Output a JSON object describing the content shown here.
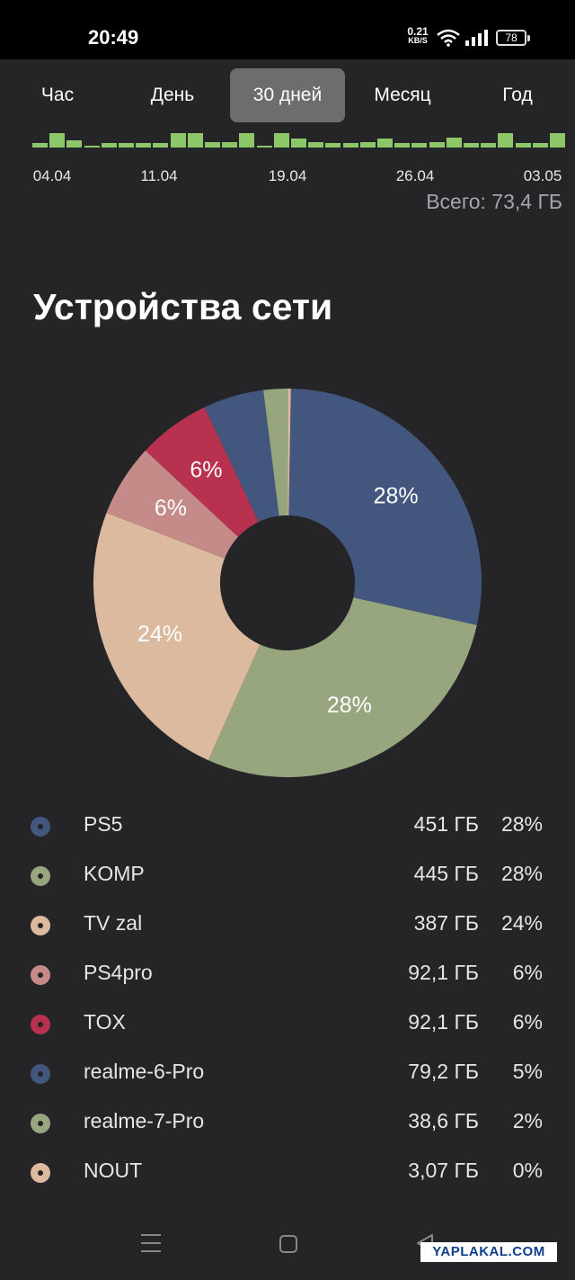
{
  "status_bar": {
    "time": "20:49",
    "net_speed_value": "0.21",
    "net_speed_unit": "KB/S",
    "battery": "78"
  },
  "tabs": [
    {
      "label": "Час",
      "active": false
    },
    {
      "label": "День",
      "active": false
    },
    {
      "label": "30 дней",
      "active": true
    },
    {
      "label": "Месяц",
      "active": false
    },
    {
      "label": "Год",
      "active": false
    }
  ],
  "usage_chart": {
    "bar_color": "#8cc76a",
    "daily_levels": [
      0.3,
      1.0,
      0.5,
      0.15,
      0.3,
      0.3,
      0.3,
      0.3,
      1.0,
      1.0,
      0.4,
      0.4,
      1.0,
      0.15,
      1.0,
      0.6,
      0.4,
      0.3,
      0.3,
      0.4,
      0.6,
      0.3,
      0.3,
      0.4,
      0.7,
      0.3,
      0.3,
      1.0,
      0.3,
      0.3,
      1.0
    ],
    "date_labels": [
      "04.04",
      "11.04",
      "19.04",
      "26.04",
      "03.05"
    ],
    "total": "Всего: 73,4 ГБ"
  },
  "section_title": "Устройства сети",
  "chart_data": {
    "type": "pie",
    "donut": true,
    "slices": [
      {
        "name": "PS5",
        "percent": 28,
        "value": "451 ГБ",
        "color": "#43577e",
        "label": "28%"
      },
      {
        "name": "KOMP",
        "percent": 28,
        "value": "445 ГБ",
        "color": "#97a67f",
        "label": "28%"
      },
      {
        "name": "TV zal",
        "percent": 24,
        "value": "387 ГБ",
        "color": "#dbbaa0",
        "label": "24%"
      },
      {
        "name": "PS4pro",
        "percent": 6,
        "value": "92,1 ГБ",
        "color": "#c58b89",
        "label": "6%"
      },
      {
        "name": "TOX",
        "percent": 6,
        "value": "92,1 ГБ",
        "color": "#b8324f",
        "label": "6%"
      },
      {
        "name": "realme-6-Pro",
        "percent": 5,
        "value": "79,2 ГБ",
        "color": "#43577e",
        "label": ""
      },
      {
        "name": "realme-7-Pro",
        "percent": 2,
        "value": "38,6 ГБ",
        "color": "#97a67f",
        "label": ""
      },
      {
        "name": "NOUT",
        "percent": 0,
        "value": "3,07 ГБ",
        "color": "#dbbaa0",
        "label": ""
      }
    ]
  },
  "legend": [
    {
      "name": "PS5",
      "size": "451 ГБ",
      "pct": "28%",
      "color": "#43577e"
    },
    {
      "name": "KOMP",
      "size": "445 ГБ",
      "pct": "28%",
      "color": "#97a67f"
    },
    {
      "name": "TV zal",
      "size": "387 ГБ",
      "pct": "24%",
      "color": "#dbbaa0"
    },
    {
      "name": "PS4pro",
      "size": "92,1 ГБ",
      "pct": "6%",
      "color": "#c58b89"
    },
    {
      "name": "TOX",
      "size": "92,1 ГБ",
      "pct": "6%",
      "color": "#b8324f"
    },
    {
      "name": "realme-6-Pro",
      "size": "79,2 ГБ",
      "pct": "5%",
      "color": "#43577e"
    },
    {
      "name": "realme-7-Pro",
      "size": "38,6 ГБ",
      "pct": "2%",
      "color": "#97a67f"
    },
    {
      "name": "NOUT",
      "size": "3,07 ГБ",
      "pct": "0%",
      "color": "#dbbaa0"
    }
  ],
  "watermark": "YAPLAKAL.COM"
}
